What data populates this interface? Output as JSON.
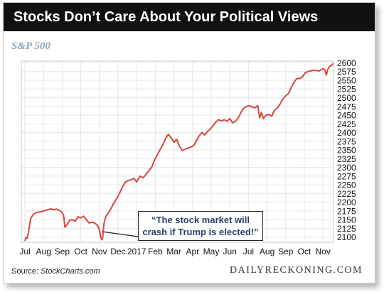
{
  "header": {
    "title": "Stocks Don’t Care About Your Political Views"
  },
  "subtitle": "S&P 500",
  "annotation": {
    "line1": "“The stock market will",
    "line2": "crash if Trump is elected!”"
  },
  "footer": {
    "source_prefix": "Source: ",
    "source_name": "StockCharts.com",
    "brand": "DAILYRECKONING.COM"
  },
  "colors": {
    "series": "#d9453a",
    "header_bg": "#111111",
    "subtitle": "#8aa3b6",
    "annotation_text": "#2a3e6e"
  },
  "chart_data": {
    "type": "line",
    "title": "S&P 500",
    "ylim": [
      2085,
      2605
    ],
    "grid": true,
    "y_axis_side": "right",
    "y_ticks": [
      2100,
      2125,
      2150,
      2175,
      2200,
      2225,
      2250,
      2275,
      2300,
      2325,
      2350,
      2375,
      2400,
      2425,
      2450,
      2475,
      2500,
      2525,
      2550,
      2575,
      2600
    ],
    "x_ticks": [
      "Jul",
      "Aug",
      "Sep",
      "Oct",
      "Nov",
      "Dec",
      "2017",
      "Feb",
      "Mar",
      "Apr",
      "May",
      "Jun",
      "Jul",
      "Aug",
      "Sep",
      "Oct",
      "Nov"
    ],
    "series": [
      {
        "values": [
          [
            0.0,
            2089
          ],
          [
            0.05,
            2098
          ],
          [
            0.12,
            2096
          ],
          [
            0.2,
            2115
          ],
          [
            0.3,
            2152
          ],
          [
            0.45,
            2165
          ],
          [
            0.6,
            2170
          ],
          [
            0.8,
            2172
          ],
          [
            1.0,
            2175
          ],
          [
            1.2,
            2178
          ],
          [
            1.4,
            2181
          ],
          [
            1.55,
            2178
          ],
          [
            1.7,
            2180
          ],
          [
            1.85,
            2177
          ],
          [
            2.0,
            2170
          ],
          [
            2.08,
            2162
          ],
          [
            2.15,
            2128
          ],
          [
            2.25,
            2135
          ],
          [
            2.4,
            2148
          ],
          [
            2.55,
            2150
          ],
          [
            2.7,
            2145
          ],
          [
            2.85,
            2158
          ],
          [
            3.0,
            2155
          ],
          [
            3.15,
            2160
          ],
          [
            3.3,
            2150
          ],
          [
            3.45,
            2140
          ],
          [
            3.6,
            2143
          ],
          [
            3.75,
            2140
          ],
          [
            3.9,
            2133
          ],
          [
            4.0,
            2120
          ],
          [
            4.08,
            2098
          ],
          [
            4.13,
            2092
          ],
          [
            4.18,
            2100
          ],
          [
            4.25,
            2140
          ],
          [
            4.35,
            2160
          ],
          [
            4.5,
            2170
          ],
          [
            4.65,
            2185
          ],
          [
            4.8,
            2200
          ],
          [
            4.95,
            2212
          ],
          [
            5.1,
            2228
          ],
          [
            5.25,
            2245
          ],
          [
            5.4,
            2258
          ],
          [
            5.55,
            2262
          ],
          [
            5.7,
            2264
          ],
          [
            5.85,
            2269
          ],
          [
            6.0,
            2258
          ],
          [
            6.1,
            2268
          ],
          [
            6.2,
            2275
          ],
          [
            6.35,
            2270
          ],
          [
            6.5,
            2280
          ],
          [
            6.65,
            2290
          ],
          [
            6.8,
            2300
          ],
          [
            6.95,
            2320
          ],
          [
            7.1,
            2335
          ],
          [
            7.25,
            2350
          ],
          [
            7.4,
            2365
          ],
          [
            7.55,
            2382
          ],
          [
            7.7,
            2395
          ],
          [
            7.85,
            2385
          ],
          [
            8.0,
            2372
          ],
          [
            8.15,
            2380
          ],
          [
            8.3,
            2360
          ],
          [
            8.45,
            2348
          ],
          [
            8.6,
            2352
          ],
          [
            8.75,
            2355
          ],
          [
            8.9,
            2358
          ],
          [
            9.05,
            2362
          ],
          [
            9.2,
            2375
          ],
          [
            9.35,
            2390
          ],
          [
            9.5,
            2400
          ],
          [
            9.65,
            2393
          ],
          [
            9.8,
            2403
          ],
          [
            9.95,
            2410
          ],
          [
            10.1,
            2420
          ],
          [
            10.25,
            2430
          ],
          [
            10.4,
            2437
          ],
          [
            10.55,
            2433
          ],
          [
            10.7,
            2437
          ],
          [
            10.85,
            2432
          ],
          [
            11.0,
            2440
          ],
          [
            11.15,
            2428
          ],
          [
            11.3,
            2432
          ],
          [
            11.45,
            2442
          ],
          [
            11.6,
            2458
          ],
          [
            11.75,
            2470
          ],
          [
            11.9,
            2475
          ],
          [
            12.05,
            2477
          ],
          [
            12.2,
            2473
          ],
          [
            12.35,
            2471
          ],
          [
            12.5,
            2477
          ],
          [
            12.6,
            2442
          ],
          [
            12.7,
            2458
          ],
          [
            12.8,
            2440
          ],
          [
            12.95,
            2450
          ],
          [
            13.1,
            2452
          ],
          [
            13.25,
            2447
          ],
          [
            13.4,
            2465
          ],
          [
            13.55,
            2470
          ],
          [
            13.7,
            2482
          ],
          [
            13.85,
            2497
          ],
          [
            14.0,
            2505
          ],
          [
            14.15,
            2512
          ],
          [
            14.3,
            2530
          ],
          [
            14.45,
            2545
          ],
          [
            14.6,
            2555
          ],
          [
            14.75,
            2555
          ],
          [
            14.9,
            2560
          ],
          [
            15.05,
            2572
          ],
          [
            15.2,
            2575
          ],
          [
            15.35,
            2577
          ],
          [
            15.5,
            2579
          ],
          [
            15.65,
            2578
          ],
          [
            15.8,
            2577
          ],
          [
            15.9,
            2580
          ],
          [
            16.0,
            2583
          ],
          [
            16.1,
            2580
          ],
          [
            16.18,
            2565
          ],
          [
            16.25,
            2580
          ],
          [
            16.35,
            2590
          ],
          [
            16.45,
            2592
          ],
          [
            16.55,
            2598
          ]
        ]
      }
    ]
  }
}
